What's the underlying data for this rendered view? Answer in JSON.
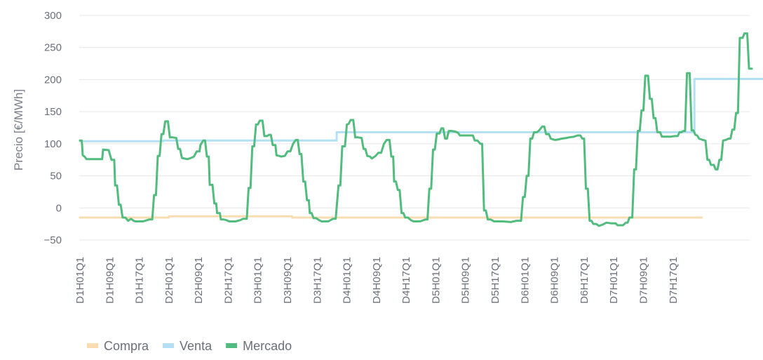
{
  "chart_data": {
    "type": "line",
    "step": true,
    "title": "",
    "xlabel": "",
    "ylabel": "Precio [€/MWh]",
    "ylim": [
      -50,
      300
    ],
    "yticks": [
      -50,
      0,
      50,
      100,
      150,
      200,
      250,
      300
    ],
    "grid": true,
    "legend_position": "bottom-left",
    "quarters_per_day": 96,
    "days": 7,
    "x_tick_labels": [
      "D1H01Q1",
      "D1H09Q1",
      "D1H17Q1",
      "D2H01Q1",
      "D2H09Q1",
      "D2H17Q1",
      "D3H01Q1",
      "D3H09Q1",
      "D3H17Q1",
      "D4H01Q1",
      "D4H09Q1",
      "D4H17Q1",
      "D5H01Q1",
      "D5H09Q1",
      "D5H17Q1",
      "D6H01Q1",
      "D6H09Q1",
      "D6H17Q1",
      "D7H01Q1",
      "D7H09Q1",
      "D7H17Q1"
    ],
    "series": [
      {
        "name": "Compra",
        "color": "#f9ddb0",
        "points": [
          [
            0,
            -15
          ],
          [
            96,
            -15
          ],
          [
            96,
            -13
          ],
          [
            229,
            -13
          ],
          [
            229,
            -15
          ],
          [
            671,
            -15
          ]
        ]
      },
      {
        "name": "Venta",
        "color": "#b3e0f5",
        "points": [
          [
            0,
            104
          ],
          [
            90,
            104
          ],
          [
            90,
            105
          ],
          [
            277,
            105
          ],
          [
            277,
            118
          ],
          [
            663,
            118
          ],
          [
            663,
            201
          ],
          [
            768,
            201
          ]
        ]
      },
      {
        "name": "Mercado",
        "color": "#52bb7e",
        "points": [
          [
            0,
            105
          ],
          [
            2,
            105
          ],
          [
            3,
            82
          ],
          [
            5,
            80
          ],
          [
            7,
            76
          ],
          [
            16,
            76
          ],
          [
            24,
            76
          ],
          [
            25,
            91
          ],
          [
            31,
            90
          ],
          [
            34,
            75
          ],
          [
            37,
            75
          ],
          [
            38,
            35
          ],
          [
            40,
            35
          ],
          [
            42,
            5
          ],
          [
            44,
            5
          ],
          [
            46,
            -15
          ],
          [
            49,
            -15
          ],
          [
            52,
            -20
          ],
          [
            55,
            -17
          ],
          [
            58,
            -20
          ],
          [
            60,
            -21
          ],
          [
            68,
            -21
          ],
          [
            75,
            -18
          ],
          [
            78,
            -18
          ],
          [
            80,
            20
          ],
          [
            82,
            20
          ],
          [
            84,
            81
          ],
          [
            86,
            81
          ],
          [
            88,
            115
          ],
          [
            90,
            115
          ],
          [
            92,
            135
          ],
          [
            95,
            135
          ],
          [
            97,
            110
          ],
          [
            100,
            110
          ],
          [
            104,
            109
          ],
          [
            106,
            92
          ],
          [
            108,
            92
          ],
          [
            110,
            78
          ],
          [
            113,
            77
          ],
          [
            116,
            76
          ],
          [
            120,
            78
          ],
          [
            123,
            80
          ],
          [
            126,
            88
          ],
          [
            129,
            88
          ],
          [
            130,
            98
          ],
          [
            133,
            105
          ],
          [
            135,
            105
          ],
          [
            137,
            80
          ],
          [
            139,
            80
          ],
          [
            140,
            36
          ],
          [
            143,
            36
          ],
          [
            145,
            7
          ],
          [
            147,
            7
          ],
          [
            148,
            -8
          ],
          [
            151,
            -8
          ],
          [
            152,
            -18
          ],
          [
            155,
            -18
          ],
          [
            158,
            -19
          ],
          [
            161,
            -21
          ],
          [
            168,
            -21
          ],
          [
            173,
            -19
          ],
          [
            176,
            -17
          ],
          [
            180,
            -17
          ],
          [
            182,
            31
          ],
          [
            184,
            31
          ],
          [
            186,
            96
          ],
          [
            188,
            96
          ],
          [
            190,
            130
          ],
          [
            192,
            130
          ],
          [
            194,
            136
          ],
          [
            197,
            136
          ],
          [
            199,
            112
          ],
          [
            202,
            112
          ],
          [
            204,
            114
          ],
          [
            206,
            114
          ],
          [
            208,
            98
          ],
          [
            211,
            98
          ],
          [
            212,
            82
          ],
          [
            215,
            81
          ],
          [
            217,
            80
          ],
          [
            221,
            81
          ],
          [
            224,
            88
          ],
          [
            227,
            88
          ],
          [
            230,
            100
          ],
          [
            233,
            106
          ],
          [
            235,
            106
          ],
          [
            237,
            84
          ],
          [
            239,
            84
          ],
          [
            241,
            41
          ],
          [
            243,
            41
          ],
          [
            245,
            12
          ],
          [
            247,
            12
          ],
          [
            248,
            -8
          ],
          [
            250,
            -8
          ],
          [
            252,
            -16
          ],
          [
            255,
            -16
          ],
          [
            258,
            -19
          ],
          [
            261,
            -21
          ],
          [
            268,
            -21
          ],
          [
            273,
            -17
          ],
          [
            276,
            -17
          ],
          [
            279,
            35
          ],
          [
            281,
            35
          ],
          [
            283,
            96
          ],
          [
            286,
            96
          ],
          [
            288,
            130
          ],
          [
            290,
            131
          ],
          [
            292,
            137
          ],
          [
            295,
            137
          ],
          [
            297,
            110
          ],
          [
            300,
            110
          ],
          [
            304,
            109
          ],
          [
            306,
            92
          ],
          [
            308,
            92
          ],
          [
            310,
            81
          ],
          [
            313,
            80
          ],
          [
            315,
            77
          ],
          [
            319,
            81
          ],
          [
            322,
            86
          ],
          [
            325,
            86
          ],
          [
            328,
            100
          ],
          [
            331,
            106
          ],
          [
            334,
            106
          ],
          [
            336,
            80
          ],
          [
            338,
            80
          ],
          [
            339,
            41
          ],
          [
            341,
            41
          ],
          [
            343,
            28
          ],
          [
            345,
            28
          ],
          [
            347,
            -8
          ],
          [
            349,
            -8
          ],
          [
            351,
            -15
          ],
          [
            354,
            -15
          ],
          [
            357,
            -19
          ],
          [
            360,
            -21
          ],
          [
            367,
            -21
          ],
          [
            373,
            -18
          ],
          [
            375,
            -18
          ],
          [
            377,
            30
          ],
          [
            379,
            30
          ],
          [
            381,
            91
          ],
          [
            383,
            91
          ],
          [
            385,
            116
          ],
          [
            388,
            116
          ],
          [
            390,
            124
          ],
          [
            392,
            124
          ],
          [
            394,
            108
          ],
          [
            396,
            108
          ],
          [
            398,
            120
          ],
          [
            401,
            120
          ],
          [
            405,
            119
          ],
          [
            408,
            117
          ],
          [
            410,
            113
          ],
          [
            419,
            113
          ],
          [
            424,
            113
          ],
          [
            426,
            105
          ],
          [
            429,
            105
          ],
          [
            432,
            100
          ],
          [
            434,
            100
          ],
          [
            436,
            -4
          ],
          [
            438,
            -4
          ],
          [
            440,
            -18
          ],
          [
            443,
            -18
          ],
          [
            447,
            -21
          ],
          [
            456,
            -21
          ],
          [
            465,
            -22
          ],
          [
            471,
            -20
          ],
          [
            476,
            -20
          ],
          [
            478,
            17
          ],
          [
            480,
            17
          ],
          [
            482,
            50
          ],
          [
            484,
            50
          ],
          [
            486,
            108
          ],
          [
            488,
            108
          ],
          [
            490,
            118
          ],
          [
            493,
            118
          ],
          [
            495,
            120
          ],
          [
            499,
            127
          ],
          [
            501,
            127
          ],
          [
            503,
            115
          ],
          [
            506,
            115
          ],
          [
            508,
            108
          ],
          [
            510,
            107
          ],
          [
            513,
            106
          ],
          [
            517,
            107
          ],
          [
            520,
            108
          ],
          [
            525,
            109
          ],
          [
            528,
            110
          ],
          [
            533,
            111
          ],
          [
            537,
            113
          ],
          [
            540,
            113
          ],
          [
            542,
            108
          ],
          [
            544,
            108
          ],
          [
            546,
            30
          ],
          [
            548,
            30
          ],
          [
            550,
            -20
          ],
          [
            552,
            -20
          ],
          [
            554,
            -25
          ],
          [
            557,
            -25
          ],
          [
            560,
            -28
          ],
          [
            564,
            -26
          ],
          [
            568,
            -23
          ],
          [
            573,
            -24
          ],
          [
            578,
            -24
          ],
          [
            580,
            -27
          ],
          [
            586,
            -27
          ],
          [
            589,
            -23
          ],
          [
            591,
            -23
          ],
          [
            593,
            -15
          ],
          [
            596,
            -15
          ],
          [
            598,
            60
          ],
          [
            600,
            60
          ],
          [
            602,
            120
          ],
          [
            604,
            120
          ],
          [
            606,
            152
          ],
          [
            608,
            152
          ],
          [
            610,
            206
          ],
          [
            613,
            206
          ],
          [
            615,
            170
          ],
          [
            617,
            170
          ],
          [
            619,
            140
          ],
          [
            621,
            140
          ],
          [
            623,
            118
          ],
          [
            626,
            118
          ],
          [
            628,
            111
          ],
          [
            632,
            111
          ],
          [
            637,
            111
          ],
          [
            642,
            112
          ],
          [
            645,
            112
          ],
          [
            647,
            118
          ],
          [
            649,
            118
          ],
          [
            651,
            120
          ],
          [
            653,
            120
          ],
          [
            655,
            210
          ],
          [
            658,
            210
          ],
          [
            660,
            121
          ],
          [
            662,
            121
          ],
          [
            664,
            114
          ],
          [
            666,
            113
          ],
          [
            668,
            108
          ],
          [
            672,
            106
          ],
          [
            675,
            105
          ],
          [
            677,
            75
          ],
          [
            679,
            75
          ],
          [
            681,
            67
          ],
          [
            684,
            67
          ],
          [
            686,
            60
          ],
          [
            688,
            60
          ],
          [
            690,
            75
          ],
          [
            692,
            75
          ],
          [
            694,
            105
          ],
          [
            697,
            106
          ],
          [
            700,
            108
          ],
          [
            702,
            108
          ],
          [
            704,
            122
          ],
          [
            706,
            122
          ],
          [
            708,
            148
          ],
          [
            710,
            148
          ],
          [
            712,
            265
          ],
          [
            715,
            265
          ],
          [
            717,
            272
          ],
          [
            720,
            272
          ],
          [
            722,
            217
          ],
          [
            725,
            217
          ]
        ]
      }
    ]
  }
}
